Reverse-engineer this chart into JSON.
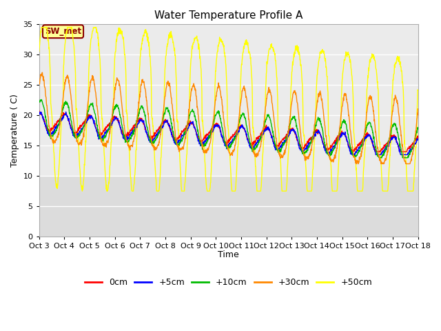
{
  "title": "Water Temperature Profile A",
  "xlabel": "Time",
  "ylabel": "Temperature ( C)",
  "ylim": [
    0,
    35
  ],
  "yticks": [
    0,
    5,
    10,
    15,
    20,
    25,
    30,
    35
  ],
  "annotation_label": "SW_met",
  "annotation_color": "#8B0000",
  "annotation_bg": "#FFFF99",
  "plot_bg_color": "#DCDCDC",
  "series_colors": {
    "0cm": "#FF0000",
    "+5cm": "#0000FF",
    "+10cm": "#00BB00",
    "+30cm": "#FF8800",
    "+50cm": "#FFFF00"
  },
  "x_tick_labels": [
    "Oct 3",
    "Oct 4",
    "Oct 5",
    "Oct 6",
    "Oct 7",
    "Oct 8",
    "Oct 9",
    "Oct 10",
    "Oct 11",
    "Oct 12",
    "Oct 13",
    "Oct 14",
    "Oct 15",
    "Oct 16",
    "Oct 17",
    "Oct 18"
  ],
  "days": 15,
  "n_points": 1500
}
